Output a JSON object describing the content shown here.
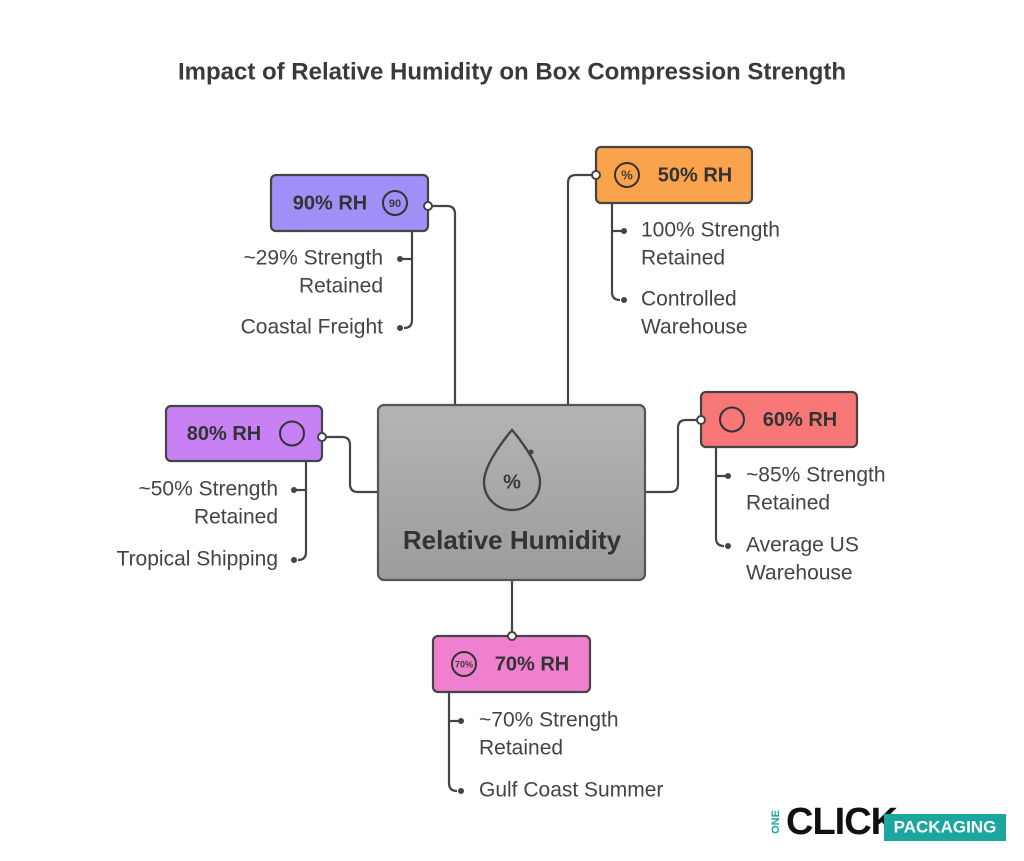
{
  "title": "Impact of Relative Humidity on Box Compression Strength",
  "center": {
    "label": "Relative Humidity",
    "icon_text": "%"
  },
  "nodes": [
    {
      "label": "90% RH",
      "icon_text": "90",
      "items": [
        {
          "lines": [
            "~29% Strength",
            "Retained"
          ]
        },
        {
          "lines": [
            "Coastal Freight"
          ]
        }
      ]
    },
    {
      "label": "50% RH",
      "icon_text": "%",
      "items": [
        {
          "lines": [
            "100% Strength",
            "Retained"
          ]
        },
        {
          "lines": [
            "Controlled",
            "Warehouse"
          ]
        }
      ]
    },
    {
      "label": "80% RH",
      "items": [
        {
          "lines": [
            "~50% Strength",
            "Retained"
          ]
        },
        {
          "lines": [
            "Tropical Shipping"
          ]
        }
      ]
    },
    {
      "label": "60% RH",
      "items": [
        {
          "lines": [
            "~85% Strength",
            "Retained"
          ]
        },
        {
          "lines": [
            "Average US",
            "Warehouse"
          ]
        }
      ]
    },
    {
      "label": "70% RH",
      "icon_text": "70%",
      "items": [
        {
          "lines": [
            "~70% Strength",
            "Retained"
          ]
        },
        {
          "lines": [
            "Gulf Coast Summer"
          ]
        }
      ]
    }
  ],
  "logo": {
    "prefix": "ONE",
    "main": "CLICK",
    "badge": "PACKAGING"
  }
}
